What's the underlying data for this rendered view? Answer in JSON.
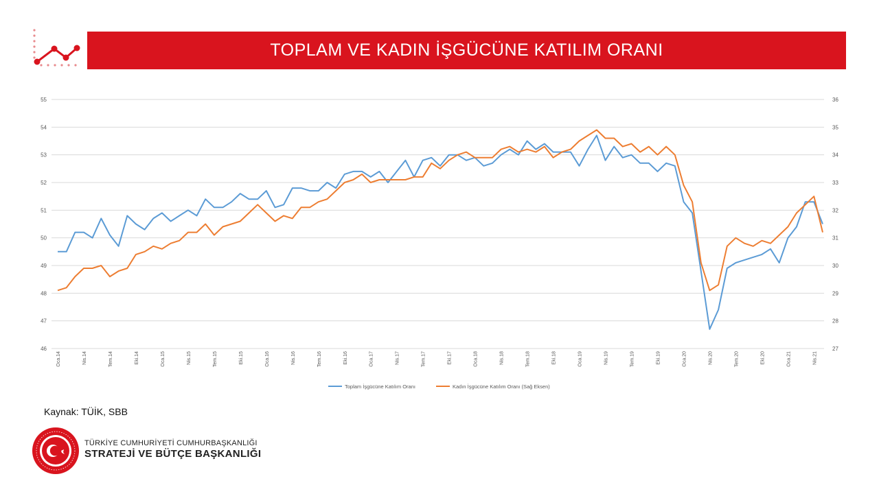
{
  "header": {
    "title": "TOPLAM VE KADIN İŞGÜCÜNE KATILIM ORANI"
  },
  "source": "Kaynak: TÜİK, SBB",
  "footer": {
    "org_line1": "TÜRKİYE CUMHURİYETİ CUMHURBAŞKANLIĞI",
    "org_line2": "STRATEJİ VE BÜTÇE BAŞKANLIĞI",
    "seal_text": "T.C. CUMHURBAŞKANLIĞI STRATEJİ VE BÜTÇE BAŞKANLIĞI"
  },
  "colors": {
    "brand_red": "#d9141e",
    "total": "#5b9bd5",
    "women": "#ed7d31"
  },
  "chart_data": {
    "type": "line",
    "left_axis": {
      "range": [
        46,
        55
      ],
      "ticks": [
        46,
        47,
        48,
        49,
        50,
        51,
        52,
        53,
        54,
        55
      ]
    },
    "right_axis": {
      "range": [
        27,
        36
      ],
      "ticks": [
        27,
        28,
        29,
        30,
        31,
        32,
        33,
        34,
        35,
        36
      ]
    },
    "x_tick_labels": [
      "Oca.14",
      "Nis.14",
      "Tem.14",
      "Eki.14",
      "Oca.15",
      "Nis.15",
      "Tem.15",
      "Eki.15",
      "Oca.16",
      "Nis.16",
      "Tem.16",
      "Eki.16",
      "Oca.17",
      "Nis.17",
      "Tem.17",
      "Eki.17",
      "Oca.18",
      "Nis.18",
      "Tem.18",
      "Eki.18",
      "Oca.19",
      "Nis.19",
      "Tem.19",
      "Eki.19",
      "Oca.20",
      "Nis.20",
      "Tem.20",
      "Eki.20",
      "Oca.21",
      "Nis.21"
    ],
    "x_start": "Oca.14",
    "x_end": "May.21",
    "grid": true,
    "legend_position": "bottom",
    "series": [
      {
        "name": "Toplam İşgücüne Katılım Oranı",
        "axis": "left",
        "color": "#5b9bd5",
        "values": [
          49.5,
          49.5,
          50.2,
          50.2,
          50.0,
          50.7,
          50.1,
          49.7,
          50.8,
          50.5,
          50.3,
          50.7,
          50.9,
          50.6,
          50.8,
          51.0,
          50.8,
          51.4,
          51.1,
          51.1,
          51.3,
          51.6,
          51.4,
          51.4,
          51.7,
          51.1,
          51.2,
          51.8,
          51.8,
          51.7,
          51.7,
          52.0,
          51.8,
          52.3,
          52.4,
          52.4,
          52.2,
          52.4,
          52.0,
          52.4,
          52.8,
          52.2,
          52.8,
          52.9,
          52.6,
          53.0,
          53.0,
          52.8,
          52.9,
          52.6,
          52.7,
          53.0,
          53.2,
          53.0,
          53.5,
          53.2,
          53.4,
          53.1,
          53.1,
          53.1,
          52.6,
          53.2,
          53.7,
          52.8,
          53.3,
          52.9,
          53.0,
          52.7,
          52.7,
          52.4,
          52.7,
          52.6,
          51.3,
          50.9,
          48.8,
          46.7,
          47.4,
          48.9,
          49.1,
          49.2,
          49.3,
          49.4,
          49.6,
          49.1,
          50.0,
          50.4,
          51.3,
          51.3,
          50.5
        ]
      },
      {
        "name": "Kadın İşgücüne Katılım Oranı (Sağ Eksen)",
        "axis": "right",
        "color": "#ed7d31",
        "values": [
          29.1,
          29.2,
          29.6,
          29.9,
          29.9,
          30.0,
          29.6,
          29.8,
          29.9,
          30.4,
          30.5,
          30.7,
          30.6,
          30.8,
          30.9,
          31.2,
          31.2,
          31.5,
          31.1,
          31.4,
          31.5,
          31.6,
          31.9,
          32.2,
          31.9,
          31.6,
          31.8,
          31.7,
          32.1,
          32.1,
          32.3,
          32.4,
          32.7,
          33.0,
          33.1,
          33.3,
          33.0,
          33.1,
          33.1,
          33.1,
          33.1,
          33.2,
          33.2,
          33.7,
          33.5,
          33.8,
          34.0,
          34.1,
          33.9,
          33.9,
          33.9,
          34.2,
          34.3,
          34.1,
          34.2,
          34.1,
          34.3,
          33.9,
          34.1,
          34.2,
          34.5,
          34.7,
          34.9,
          34.6,
          34.6,
          34.3,
          34.4,
          34.1,
          34.3,
          34.0,
          34.3,
          34.0,
          32.9,
          32.3,
          30.1,
          29.1,
          29.3,
          30.7,
          31.0,
          30.8,
          30.7,
          30.9,
          30.8,
          31.1,
          31.4,
          31.9,
          32.2,
          32.5,
          31.2
        ]
      }
    ]
  }
}
